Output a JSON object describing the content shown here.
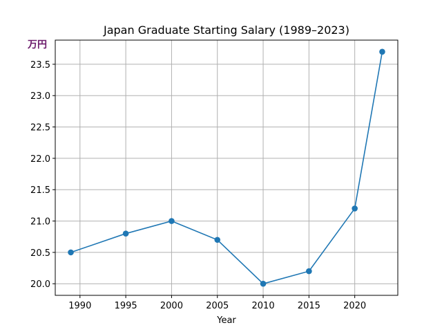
{
  "chart_data": {
    "type": "line",
    "title": "Japan Graduate Starting Salary (1989–2023)",
    "xlabel": "Year",
    "ylabel_unit": "万円",
    "x": [
      1989,
      1995,
      2000,
      2005,
      2010,
      2015,
      2020,
      2023
    ],
    "series": [
      {
        "values": [
          20.5,
          20.8,
          21.0,
          20.7,
          20.0,
          20.2,
          21.2,
          23.7
        ]
      }
    ],
    "xticks": [
      "1990",
      "1995",
      "2000",
      "2005",
      "2010",
      "2015",
      "2020"
    ],
    "yticks": [
      "20.0",
      "20.5",
      "21.0",
      "21.5",
      "22.0",
      "22.5",
      "23.0",
      "23.5"
    ],
    "xlim": [
      1987.3,
      2024.7
    ],
    "ylim": [
      19.815,
      23.885
    ],
    "grid": true,
    "colors": {
      "line": "#1f77b4",
      "grid": "#b0b0b0",
      "unit": "#6b1a6b"
    }
  }
}
